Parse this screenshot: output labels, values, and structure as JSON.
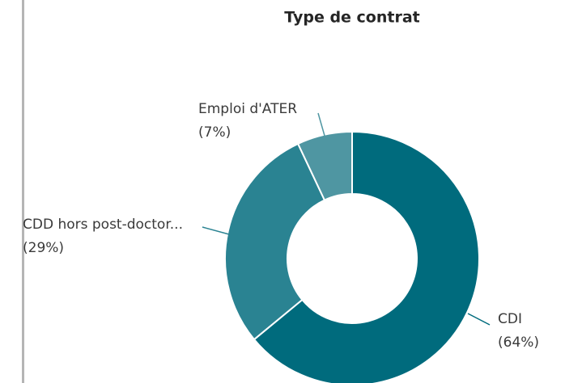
{
  "chart_data": {
    "type": "donut",
    "title": "Type de contrat",
    "categories": [
      "CDI",
      "CDD hors post-doctor...",
      "Emploi d'ATER"
    ],
    "values": [
      64,
      29,
      7
    ],
    "value_labels": [
      "(64%)",
      "(29%)",
      "(7%)"
    ],
    "colors": [
      "#006b7d",
      "#2a8392",
      "#4f96a2"
    ]
  }
}
